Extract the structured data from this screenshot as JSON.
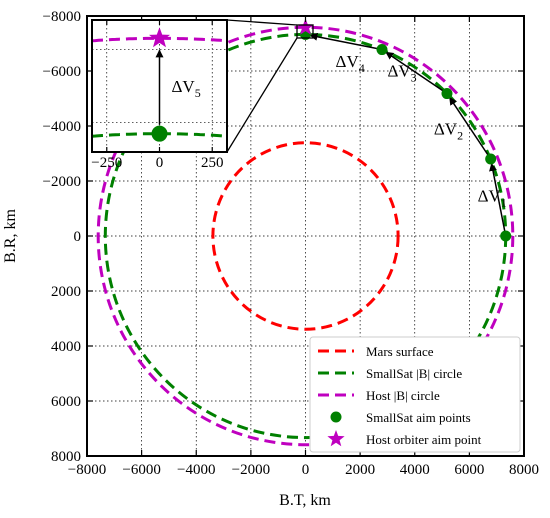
{
  "chart_data": {
    "type": "line",
    "title": "",
    "xlabel": "B.T, km",
    "ylabel": "B.R, km",
    "xlim": [
      -8000,
      8000
    ],
    "ylim": [
      8000,
      -8000
    ],
    "y_inverted": true,
    "grid": true,
    "legend_position": "bottom-right",
    "xticks": [
      -8000,
      -6000,
      -4000,
      -2000,
      0,
      2000,
      4000,
      6000,
      8000
    ],
    "yticks": [
      -8000,
      -6000,
      -4000,
      -2000,
      0,
      2000,
      4000,
      6000,
      8000
    ],
    "series": [
      {
        "name": "Mars surface",
        "kind": "circle",
        "radius": 3390,
        "color": "#ff0000",
        "dashed": true
      },
      {
        "name": "SmallSat |B| circle",
        "kind": "circle",
        "radius": 7330,
        "color": "#008000",
        "dashed": true
      },
      {
        "name": "Host |B| circle",
        "kind": "circle",
        "radius": 7590,
        "color": "#bf00bf",
        "dashed": true
      },
      {
        "name": "SmallSat aim points",
        "kind": "points",
        "marker": "circle",
        "color": "#008000",
        "x": [
          7330,
          6780,
          5180,
          2800,
          0
        ],
        "y": [
          0,
          -2800,
          -5180,
          -6780,
          -7330
        ]
      },
      {
        "name": "Host orbiter aim point",
        "kind": "points",
        "marker": "star",
        "color": "#bf00bf",
        "x": [
          0
        ],
        "y": [
          -7590
        ]
      }
    ],
    "annotations": [
      {
        "label": "ΔV",
        "sub": "1",
        "x": 6300,
        "y": -1250
      },
      {
        "label": "ΔV",
        "sub": "2",
        "x": 4700,
        "y": -3700
      },
      {
        "label": "ΔV",
        "sub": "3",
        "x": 3000,
        "y": -5800
      },
      {
        "label": "ΔV",
        "sub": "4",
        "x": 1100,
        "y": -6150
      }
    ],
    "inset": {
      "xlim": [
        -320,
        320
      ],
      "ylim": [
        -7640,
        -7280
      ],
      "xticks": [
        -250,
        0,
        250
      ],
      "annotation": {
        "label": "ΔV",
        "sub": "5"
      },
      "smallsat_point": {
        "x": 0,
        "y": -7330
      },
      "host_point": {
        "x": 0,
        "y": -7590
      }
    }
  }
}
